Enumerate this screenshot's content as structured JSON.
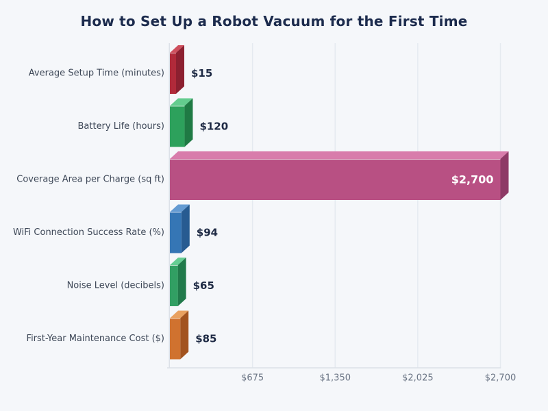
{
  "chart_data": {
    "type": "bar",
    "orientation": "horizontal",
    "bar_style": "3d-extruded",
    "title": "How to Set Up a Robot Vacuum for the First Time",
    "categories": [
      "Average Setup Time (minutes)",
      "Battery Life (hours)",
      "Coverage Area per Charge (sq ft)",
      "WiFi Connection Success Rate (%)",
      "Noise Level (decibels)",
      "First-Year Maintenance Cost ($)"
    ],
    "values": [
      15,
      120,
      2700,
      94,
      65,
      85
    ],
    "value_labels": [
      "$15",
      "$120",
      "$2,700",
      "$94",
      "$65",
      "$85"
    ],
    "value_label_placement": [
      "outside",
      "outside",
      "inside",
      "outside",
      "outside",
      "outside"
    ],
    "xlim": [
      0,
      2700
    ],
    "x_tick_values": [
      675,
      1350,
      2025,
      2700
    ],
    "x_tick_labels": [
      "$675",
      "$1,350",
      "$2,025",
      "$2,700"
    ],
    "grid": "vertical-only",
    "legend": null,
    "bar_colors": [
      {
        "name": "red",
        "front": "#b12a3a",
        "top": "#ce4f5d",
        "side": "#8c2030"
      },
      {
        "name": "green",
        "front": "#2da15c",
        "top": "#63cc8e",
        "side": "#1f7a44"
      },
      {
        "name": "pink",
        "front": "#b85083",
        "top": "#d87cab",
        "side": "#8e3a66"
      },
      {
        "name": "blue",
        "front": "#3576b5",
        "top": "#649bd2",
        "side": "#275b91"
      },
      {
        "name": "seafoam-green",
        "front": "#319f63",
        "top": "#65cd93",
        "side": "#217a4b"
      },
      {
        "name": "orange",
        "front": "#d0722f",
        "top": "#e9a160",
        "side": "#a2531f"
      }
    ],
    "colors": {
      "background": "#f5f7fa",
      "title": "#1c2b4d",
      "category_label": "#3d4757",
      "tick_label": "#6a7484",
      "value_label": "#1e2a44",
      "value_label_inside": "#ffffff",
      "gridline": "#e5eaf0",
      "axis_line": "#dce1e8"
    }
  }
}
